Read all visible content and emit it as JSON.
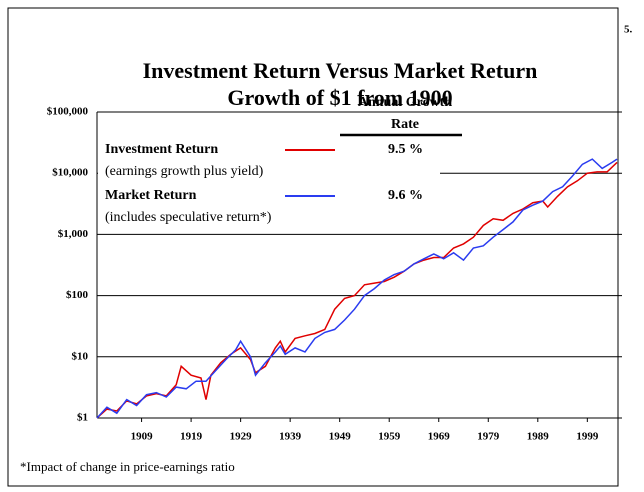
{
  "page_number": "5.",
  "chart_data": {
    "type": "line",
    "title": [
      "Investment Return Versus Market Return",
      "Growth of $1 from 1900"
    ],
    "legend_header": [
      "Annual Growth",
      "Rate"
    ],
    "footnote": "*Impact of change in price-earnings ratio",
    "log_scale": true,
    "grid": true,
    "xlim": [
      1900,
      2006
    ],
    "xticks": [
      1909,
      1919,
      1929,
      1939,
      1949,
      1959,
      1969,
      1979,
      1989,
      1999
    ],
    "ylim": [
      1,
      100000
    ],
    "yticks": [
      {
        "value": 1,
        "label": "$1"
      },
      {
        "value": 10,
        "label": "$10"
      },
      {
        "value": 100,
        "label": "$100"
      },
      {
        "value": 1000,
        "label": "$1,000"
      },
      {
        "value": 10000,
        "label": "$10,000"
      },
      {
        "value": 100000,
        "label": "$100,000"
      }
    ],
    "series": [
      {
        "name": "Investment Return",
        "note": "(earnings growth plus yield)",
        "rate": "9.5 %",
        "color": "#e00000",
        "x": [
          1900,
          1902,
          1904,
          1906,
          1908,
          1910,
          1912,
          1914,
          1916,
          1917,
          1919,
          1921,
          1922,
          1923,
          1925,
          1927,
          1929,
          1931,
          1932,
          1934,
          1936,
          1937,
          1938,
          1940,
          1942,
          1944,
          1946,
          1948,
          1950,
          1952,
          1954,
          1956,
          1958,
          1960,
          1962,
          1964,
          1966,
          1968,
          1970,
          1972,
          1974,
          1976,
          1978,
          1980,
          1982,
          1984,
          1986,
          1988,
          1990,
          1991,
          1993,
          1995,
          1997,
          1999,
          2001,
          2003,
          2005
        ],
        "values": [
          1,
          1.4,
          1.3,
          1.9,
          1.7,
          2.3,
          2.5,
          2.3,
          3.5,
          7,
          5,
          4.5,
          2,
          5,
          8,
          11,
          14,
          9,
          5.5,
          7,
          14,
          18,
          12,
          20,
          22,
          24,
          28,
          60,
          90,
          100,
          150,
          160,
          170,
          200,
          250,
          330,
          380,
          420,
          420,
          600,
          700,
          900,
          1400,
          1800,
          1700,
          2200,
          2600,
          3300,
          3500,
          2800,
          4200,
          6000,
          7500,
          10000,
          10500,
          10500,
          15000
        ]
      },
      {
        "name": "Market Return",
        "note": "(includes speculative return*)",
        "rate": "9.6 %",
        "color": "#2a3cf0",
        "x": [
          1900,
          1902,
          1904,
          1906,
          1908,
          1910,
          1912,
          1914,
          1916,
          1918,
          1920,
          1922,
          1924,
          1926,
          1928,
          1929,
          1931,
          1932,
          1934,
          1936,
          1937,
          1938,
          1940,
          1942,
          1944,
          1946,
          1948,
          1950,
          1952,
          1954,
          1956,
          1958,
          1960,
          1962,
          1964,
          1966,
          1968,
          1970,
          1972,
          1974,
          1976,
          1978,
          1980,
          1982,
          1984,
          1986,
          1988,
          1990,
          1992,
          1994,
          1996,
          1998,
          2000,
          2002,
          2004,
          2005
        ],
        "values": [
          1,
          1.5,
          1.2,
          2,
          1.6,
          2.4,
          2.6,
          2.2,
          3.2,
          3,
          4,
          4,
          6,
          9,
          13,
          18,
          10,
          5,
          8,
          12,
          15,
          11,
          14,
          12,
          20,
          25,
          28,
          40,
          60,
          100,
          130,
          180,
          220,
          250,
          330,
          400,
          480,
          400,
          500,
          380,
          600,
          650,
          900,
          1200,
          1600,
          2500,
          3000,
          3500,
          5000,
          6000,
          9000,
          14000,
          17000,
          12000,
          15000,
          17000
        ]
      }
    ]
  }
}
